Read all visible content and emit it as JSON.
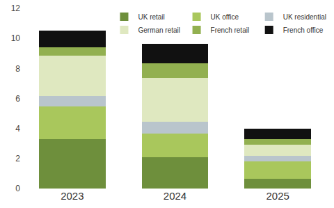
{
  "chart_data": {
    "type": "bar",
    "stacked": true,
    "categories": [
      "2023",
      "2024",
      "2025"
    ],
    "series": [
      {
        "name": "UK retail",
        "color": "#6e8f3c",
        "values": [
          3.3,
          2.1,
          0.65
        ]
      },
      {
        "name": "UK office",
        "color": "#a9c75c",
        "values": [
          2.15,
          1.55,
          1.15
        ]
      },
      {
        "name": "UK residential",
        "color": "#b9c5cc",
        "values": [
          0.7,
          0.8,
          0.4
        ]
      },
      {
        "name": "German retail",
        "color": "#dfe8c0",
        "values": [
          2.7,
          2.9,
          0.7
        ]
      },
      {
        "name": "French retail",
        "color": "#92b050",
        "values": [
          0.55,
          1.0,
          0.4
        ]
      },
      {
        "name": "French office",
        "color": "#111111",
        "values": [
          1.1,
          1.3,
          0.7
        ]
      }
    ],
    "ylim": [
      0,
      12
    ],
    "yticks": [
      0,
      2,
      4,
      6,
      8,
      10,
      12
    ],
    "grid": false,
    "legend": "upper right"
  }
}
